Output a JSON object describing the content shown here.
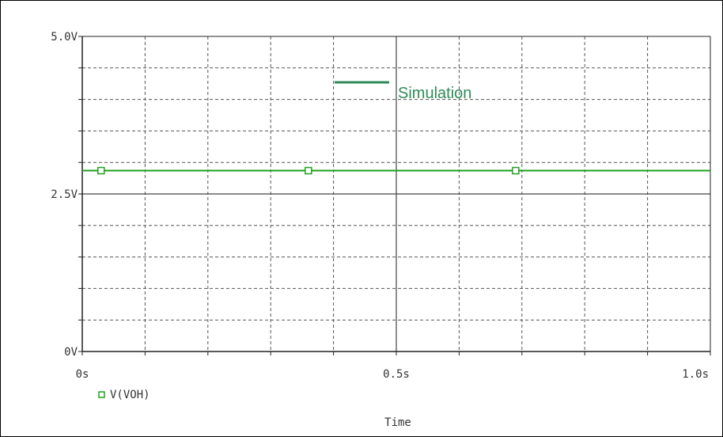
{
  "chart_data": {
    "type": "line",
    "xlabel": "Time",
    "ylabel": "",
    "x_ticks": [
      {
        "value": 0,
        "label": "0s"
      },
      {
        "value": 0.5,
        "label": "0.5s"
      },
      {
        "value": 1.0,
        "label": "1.0s"
      }
    ],
    "y_ticks": [
      {
        "value": 0,
        "label": "0V"
      },
      {
        "value": 2.5,
        "label": "2.5V"
      },
      {
        "value": 5.0,
        "label": "5.0V"
      }
    ],
    "xlim": [
      0,
      1.0
    ],
    "ylim": [
      0,
      5.0
    ],
    "x_minor_step": 0.1,
    "y_minor_step": 0.5,
    "grid": true,
    "series": [
      {
        "name": "V(VOH)",
        "color": "#1fa01f",
        "x": [
          0,
          1.0
        ],
        "y": [
          2.87,
          2.87
        ],
        "marker_x": [
          0.03,
          0.36,
          0.69
        ]
      }
    ],
    "annotation": {
      "text": "Simulation",
      "color": "#2e8b57",
      "position": "top-center"
    },
    "legend_placement": "bottom-left"
  }
}
